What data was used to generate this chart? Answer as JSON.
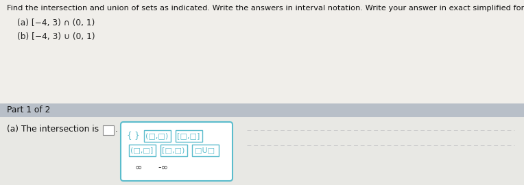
{
  "title_text": "Find the intersection and union of sets as indicated. Write the answers in interval notation. Write your answer in exact simplified form.",
  "line_a": "(a) [−4, 3) ∩ (0, 1)",
  "line_b": "(b) [−4, 3) ∪ (0, 1)",
  "part_label": "Part 1 of 2",
  "part_bg": "#b8bfc8",
  "intersection_label": "(a) The intersection is",
  "answer_box_border": "#999999",
  "popup_border": "#5bbccc",
  "popup_bg": "#ffffff",
  "bg_color": "#e8e8e4",
  "title_bg": "#f0eeea",
  "btn_color": "#5bbccc",
  "btn_text_color": "#5bbccc",
  "deco_line_color": "#cccccc",
  "title_fontsize": 8.2,
  "label_fontsize": 8.8,
  "part_fontsize": 8.8,
  "btn_fontsize": 8.0
}
